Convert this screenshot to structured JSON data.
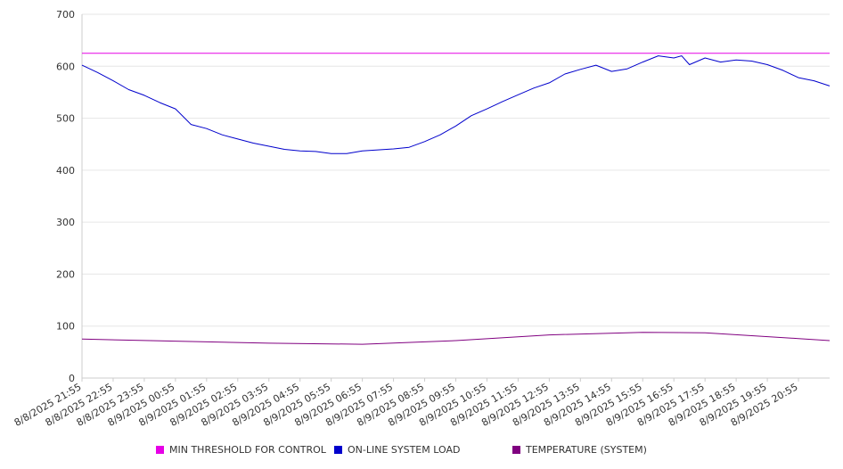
{
  "chart_data": {
    "type": "line",
    "title": "",
    "xlabel": "",
    "ylabel": "",
    "ylim": [
      0,
      700
    ],
    "yticks": [
      0,
      100,
      200,
      300,
      400,
      500,
      600,
      700
    ],
    "grid": true,
    "legend_position": "bottom",
    "xtick_labels": [
      "8/8/2025 21:55",
      "8/8/2025 22:55",
      "8/8/2025 23:55",
      "8/9/2025 00:55",
      "8/9/2025 01:55",
      "8/9/2025 02:55",
      "8/9/2025 03:55",
      "8/9/2025 04:55",
      "8/9/2025 05:55",
      "8/9/2025 06:55",
      "8/9/2025 07:55",
      "8/9/2025 08:55",
      "8/9/2025 09:55",
      "8/9/2025 10:55",
      "8/9/2025 11:55",
      "8/9/2025 12:55",
      "8/9/2025 13:55",
      "8/9/2025 14:55",
      "8/9/2025 15:55",
      "8/9/2025 16:55",
      "8/9/2025 17:55",
      "8/9/2025 18:55",
      "8/9/2025 19:55",
      "8/9/2025 20:55"
    ],
    "x_start": "8/8/2025 21:55",
    "x_end": "8/9/2025 21:55",
    "series": [
      {
        "name": "MIN THRESHOLD FOR CONTROL",
        "color": "#e600e6",
        "x": [
          "8/8/2025 21:55",
          "8/9/2025 21:55"
        ],
        "values": [
          625,
          625
        ]
      },
      {
        "name": "ON-LINE SYSTEM LOAD",
        "color": "#0000cc",
        "x": [
          "8/8/2025 21:55",
          "8/8/2025 22:25",
          "8/8/2025 22:55",
          "8/8/2025 23:25",
          "8/8/2025 23:55",
          "8/9/2025 00:25",
          "8/9/2025 00:55",
          "8/9/2025 01:25",
          "8/9/2025 01:55",
          "8/9/2025 02:25",
          "8/9/2025 02:55",
          "8/9/2025 03:25",
          "8/9/2025 03:55",
          "8/9/2025 04:25",
          "8/9/2025 04:55",
          "8/9/2025 05:25",
          "8/9/2025 05:55",
          "8/9/2025 06:25",
          "8/9/2025 06:55",
          "8/9/2025 07:25",
          "8/9/2025 07:55",
          "8/9/2025 08:25",
          "8/9/2025 08:55",
          "8/9/2025 09:25",
          "8/9/2025 09:55",
          "8/9/2025 10:25",
          "8/9/2025 10:55",
          "8/9/2025 11:25",
          "8/9/2025 11:55",
          "8/9/2025 12:25",
          "8/9/2025 12:55",
          "8/9/2025 13:25",
          "8/9/2025 13:55",
          "8/9/2025 14:25",
          "8/9/2025 14:55",
          "8/9/2025 15:25",
          "8/9/2025 15:55",
          "8/9/2025 16:25",
          "8/9/2025 16:55",
          "8/9/2025 17:10",
          "8/9/2025 17:25",
          "8/9/2025 17:55",
          "8/9/2025 18:25",
          "8/9/2025 18:55",
          "8/9/2025 19:25",
          "8/9/2025 19:55",
          "8/9/2025 20:25",
          "8/9/2025 20:55",
          "8/9/2025 21:25",
          "8/9/2025 21:55"
        ],
        "values": [
          602,
          588,
          572,
          555,
          544,
          530,
          518,
          488,
          480,
          468,
          460,
          452,
          446,
          440,
          437,
          436,
          432,
          432,
          437,
          439,
          441,
          444,
          455,
          468,
          485,
          505,
          518,
          532,
          545,
          558,
          568,
          585,
          594,
          602,
          590,
          595,
          608,
          620,
          616,
          620,
          603,
          616,
          608,
          612,
          610,
          603,
          592,
          578,
          572,
          562
        ]
      },
      {
        "name": "TEMPERATURE (SYSTEM)",
        "color": "#800080",
        "x": [
          "8/8/2025 21:55",
          "8/9/2025 00:55",
          "8/9/2025 03:55",
          "8/9/2025 06:55",
          "8/9/2025 09:55",
          "8/9/2025 12:55",
          "8/9/2025 15:55",
          "8/9/2025 17:55",
          "8/9/2025 20:55",
          "8/9/2025 21:55"
        ],
        "values": [
          75,
          71,
          67,
          65,
          72,
          83,
          88,
          87,
          76,
          72
        ]
      }
    ]
  }
}
